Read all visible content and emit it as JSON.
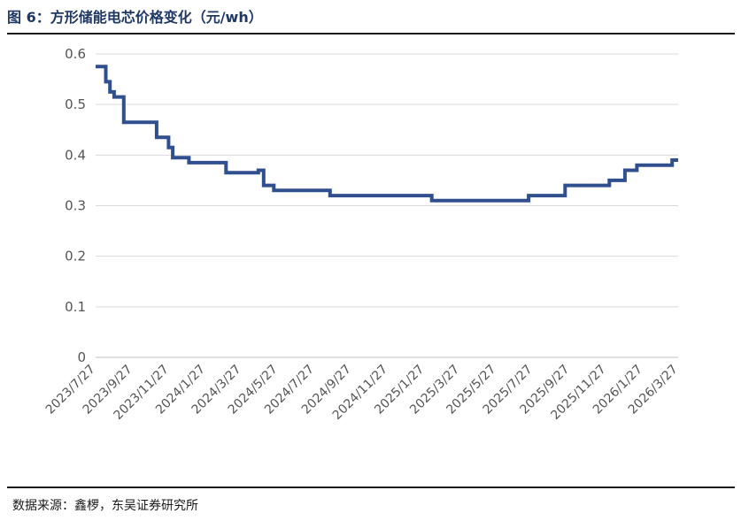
{
  "header": {
    "title": "图 6：方形储能电芯价格变化（元/wh）"
  },
  "footer": {
    "source": "数据来源：鑫椤，东吴证券研究所"
  },
  "chart_data": {
    "type": "line",
    "title": "图 6：方形储能电芯价格变化（元/wh）",
    "xlabel": "",
    "ylabel": "",
    "ylim": [
      0,
      0.6
    ],
    "xlim": [
      "2023/7/27",
      "2026/3/27"
    ],
    "y_ticks": [
      "0",
      "0.1",
      "0.2",
      "0.3",
      "0.4",
      "0.5",
      "0.6"
    ],
    "y_tick_values": [
      0,
      0.1,
      0.2,
      0.3,
      0.4,
      0.5,
      0.6
    ],
    "x_ticks": [
      "2023/7/27",
      "2023/9/27",
      "2023/11/27",
      "2024/1/27",
      "2024/3/27",
      "2024/5/27",
      "2024/7/27",
      "2024/9/27",
      "2024/11/27",
      "2025/1/27",
      "2025/3/27",
      "2025/5/27",
      "2025/7/27",
      "2025/9/27",
      "2025/11/27",
      "2026/1/27",
      "2026/3/27"
    ],
    "grid": true,
    "line_color": "#2f4f8f",
    "step": true,
    "series": [
      {
        "name": "",
        "x": [
          "2023/7/27",
          "2023/8/13",
          "2023/8/20",
          "2023/8/27",
          "2023/9/12",
          "2023/10/1",
          "2023/11/6",
          "2023/11/26",
          "2023/12/3",
          "2023/12/30",
          "2024/3/1",
          "2024/4/24",
          "2024/5/3",
          "2024/5/12",
          "2024/5/20",
          "2024/8/22",
          "2025/2/8",
          "2025/7/20",
          "2025/9/19",
          "2025/12/2",
          "2025/12/28",
          "2026/1/8",
          "2026/1/17",
          "2026/3/17",
          "2026/3/27"
        ],
        "values": [
          0.575,
          0.545,
          0.525,
          0.515,
          0.465,
          0.465,
          0.435,
          0.415,
          0.395,
          0.385,
          0.365,
          0.37,
          0.34,
          0.34,
          0.33,
          0.32,
          0.31,
          0.32,
          0.34,
          0.35,
          0.37,
          0.37,
          0.38,
          0.39,
          0.39
        ]
      }
    ]
  }
}
